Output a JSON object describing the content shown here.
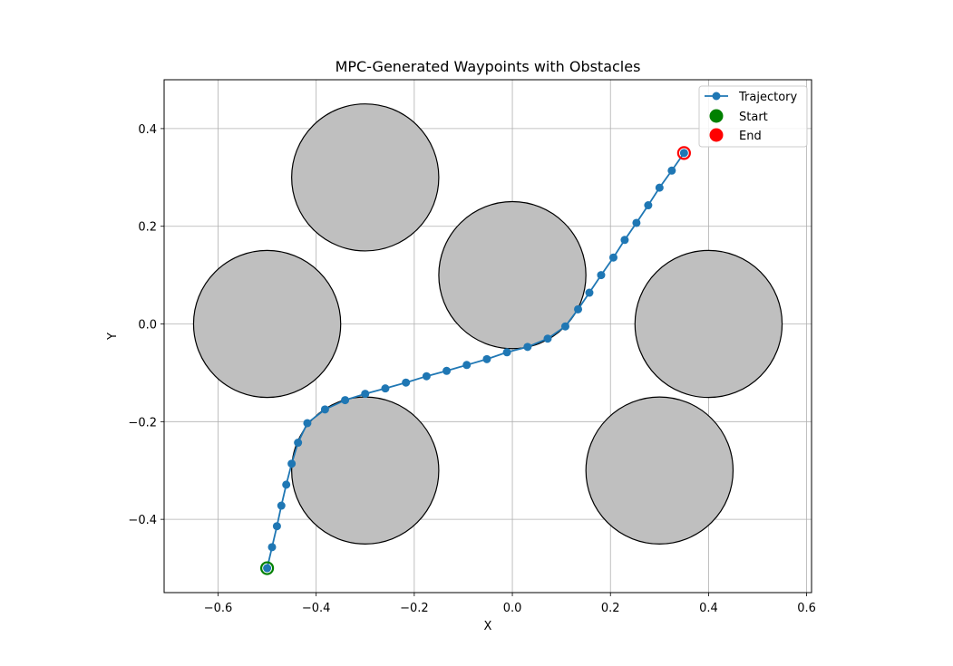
{
  "chart_data": {
    "type": "scatter",
    "title": "MPC-Generated Waypoints with Obstacles",
    "xlabel": "X",
    "ylabel": "Y",
    "xlim": [
      -0.71,
      0.61
    ],
    "ylim": [
      -0.55,
      0.5
    ],
    "grid": true,
    "legend_position": "top-right",
    "x_ticks": [
      -0.6,
      -0.4,
      -0.2,
      0.0,
      0.2,
      0.4,
      0.6
    ],
    "x_tick_labels": [
      "−0.6",
      "−0.4",
      "−0.2",
      "0.0",
      "0.2",
      "0.4",
      "0.6"
    ],
    "y_ticks": [
      -0.4,
      -0.2,
      0.0,
      0.2,
      0.4
    ],
    "y_tick_labels": [
      "−0.4",
      "−0.2",
      "0.0",
      "0.2",
      "0.4"
    ],
    "obstacles": [
      {
        "cx": -0.3,
        "cy": 0.3,
        "r": 0.15
      },
      {
        "cx": -0.5,
        "cy": 0.0,
        "r": 0.15
      },
      {
        "cx": 0.0,
        "cy": 0.1,
        "r": 0.15
      },
      {
        "cx": 0.4,
        "cy": 0.0,
        "r": 0.15
      },
      {
        "cx": -0.3,
        "cy": -0.3,
        "r": 0.15
      },
      {
        "cx": 0.3,
        "cy": -0.3,
        "r": 0.15
      }
    ],
    "obstacle_fill": "#bfbfbf",
    "obstacle_edge": "#000000",
    "series": [
      {
        "name": "Trajectory",
        "color": "#1f77b4",
        "points": [
          [
            -0.5,
            -0.5
          ],
          [
            -0.49,
            -0.457
          ],
          [
            -0.48,
            -0.414
          ],
          [
            -0.471,
            -0.372
          ],
          [
            -0.461,
            -0.329
          ],
          [
            -0.45,
            -0.286
          ],
          [
            -0.437,
            -0.243
          ],
          [
            -0.418,
            -0.203
          ],
          [
            -0.382,
            -0.175
          ],
          [
            -0.341,
            -0.156
          ],
          [
            -0.3,
            -0.143
          ],
          [
            -0.259,
            -0.132
          ],
          [
            -0.217,
            -0.12
          ],
          [
            -0.175,
            -0.107
          ],
          [
            -0.134,
            -0.096
          ],
          [
            -0.093,
            -0.084
          ],
          [
            -0.052,
            -0.072
          ],
          [
            -0.011,
            -0.058
          ],
          [
            0.031,
            -0.047
          ],
          [
            0.072,
            -0.03
          ],
          [
            0.108,
            -0.005
          ],
          [
            0.134,
            0.03
          ],
          [
            0.157,
            0.064
          ],
          [
            0.181,
            0.1
          ],
          [
            0.206,
            0.136
          ],
          [
            0.229,
            0.172
          ],
          [
            0.253,
            0.207
          ],
          [
            0.277,
            0.243
          ],
          [
            0.3,
            0.279
          ],
          [
            0.325,
            0.314
          ],
          [
            0.35,
            0.35
          ]
        ]
      },
      {
        "name": "Start",
        "color": "#008000",
        "points": [
          [
            -0.5,
            -0.5
          ]
        ]
      },
      {
        "name": "End",
        "color": "#ff0000",
        "points": [
          [
            0.35,
            0.35
          ]
        ]
      }
    ]
  }
}
